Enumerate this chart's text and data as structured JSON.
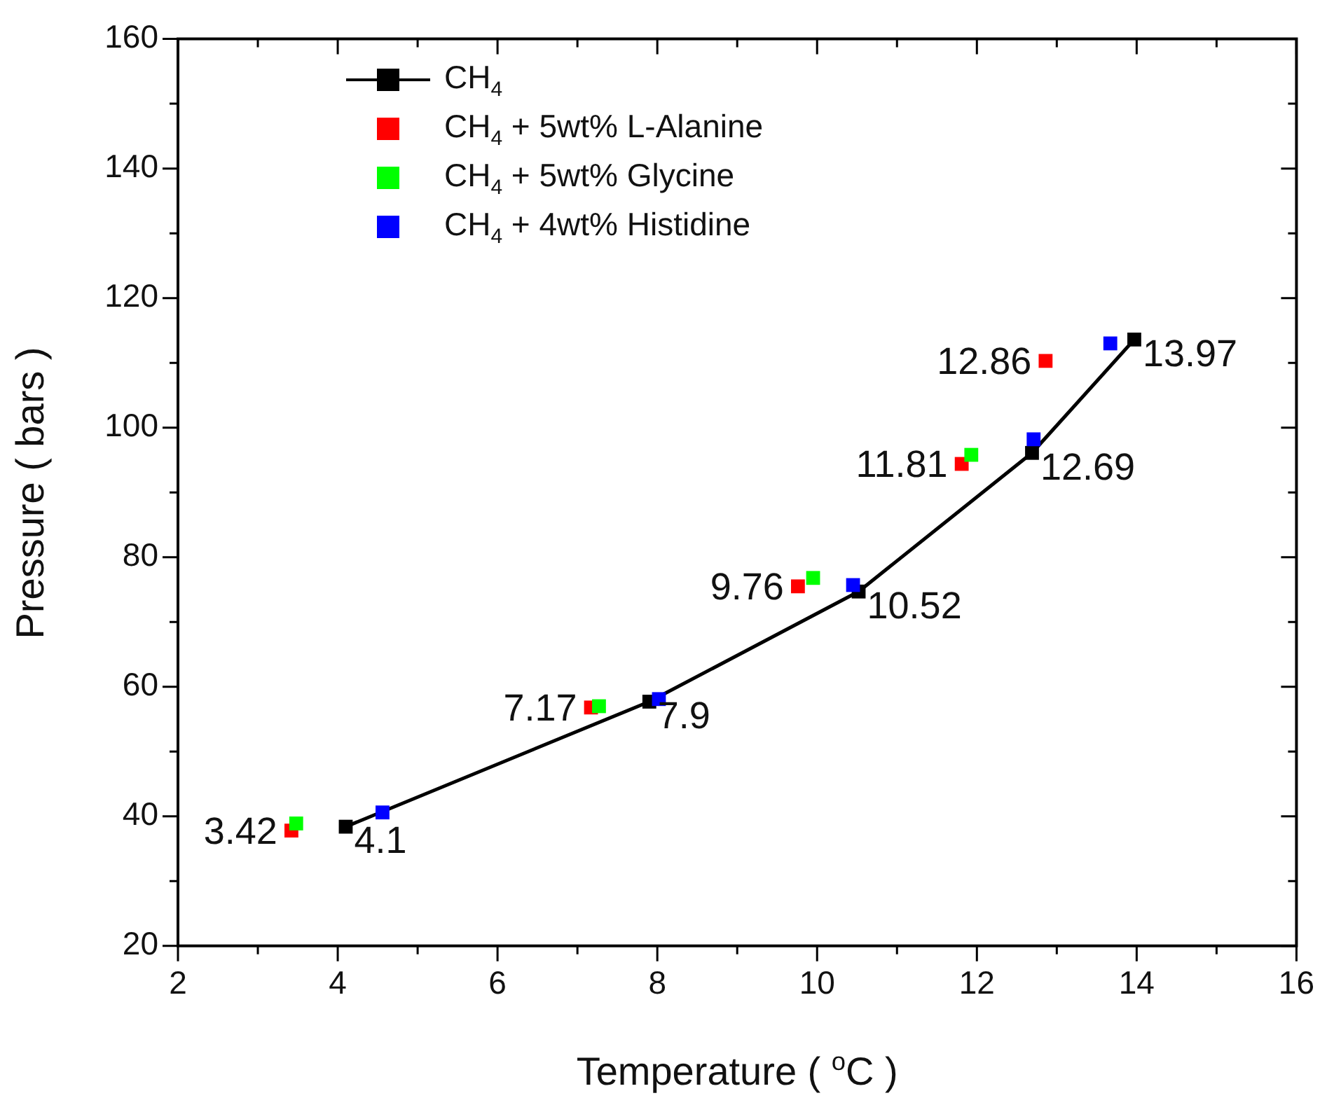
{
  "chart_data": {
    "type": "scatter",
    "xlabel": "Temperature ( $^{o}$C )",
    "ylabel": "Pressure ( bars )",
    "xlim": [
      2,
      16
    ],
    "xticks": [
      2,
      {
        "value": 3,
        "label": null
      },
      4,
      {
        "value": 5,
        "label": null
      },
      6,
      {
        "value": 7,
        "label": null
      },
      8,
      {
        "value": 9,
        "label": null
      },
      10,
      {
        "value": 11,
        "label": null
      },
      12,
      {
        "value": 13,
        "label": null
      },
      14,
      {
        "value": 15,
        "label": null
      },
      16
    ],
    "ylim": [
      20,
      160
    ],
    "yticks": [
      20,
      {
        "value": 30,
        "label": null
      },
      40,
      {
        "value": 50,
        "label": null
      },
      60,
      {
        "value": 70,
        "label": null
      },
      80,
      {
        "value": 90,
        "label": null
      },
      100,
      {
        "value": 110,
        "label": null
      },
      120,
      {
        "value": 130,
        "label": null
      },
      140,
      {
        "value": 150,
        "label": null
      },
      160
    ],
    "grid": false,
    "legend": "top left",
    "marker": "square",
    "series": [
      {
        "name": "CH$_{4}$",
        "type": "line",
        "color": "#000000",
        "x": [
          4.1,
          7.9,
          10.52,
          12.69,
          13.97
        ],
        "values": [
          38.4,
          57.7,
          74.7,
          96.1,
          113.6
        ]
      },
      {
        "name": "CH$_{4}$ + 5wt% L-Alanine",
        "type": "scatter",
        "color": "#ff0000",
        "x": [
          3.42,
          7.17,
          9.76,
          11.81,
          12.86
        ],
        "values": [
          37.8,
          56.8,
          75.5,
          94.4,
          110.3
        ]
      },
      {
        "name": "CH$_{4}$ + 5wt% Glycine",
        "type": "scatter",
        "color": "#00ff00",
        "x": [
          3.48,
          7.27,
          9.95,
          11.93
        ],
        "values": [
          38.9,
          57.0,
          76.8,
          95.8
        ]
      },
      {
        "name": "CH$_{4}$ + 4wt% Histidine",
        "type": "scatter",
        "color": "#0000ff",
        "x": [
          4.56,
          8.02,
          10.45,
          12.71,
          13.67
        ],
        "values": [
          40.6,
          58.1,
          75.7,
          98.2,
          113.0
        ]
      }
    ],
    "annotations": [
      {
        "text": "3.42",
        "x": 3.42,
        "y": 37.8
      },
      {
        "text": "4.1",
        "x": 4.1,
        "y": 38.4
      },
      {
        "text": "7.17",
        "x": 7.17,
        "y": 56.8
      },
      {
        "text": "7.9",
        "x": 7.9,
        "y": 57.7
      },
      {
        "text": "9.76",
        "x": 9.76,
        "y": 75.5
      },
      {
        "text": "10.52",
        "x": 10.52,
        "y": 74.7
      },
      {
        "text": "11.81",
        "x": 11.81,
        "y": 94.4
      },
      {
        "text": "12.69",
        "x": 12.69,
        "y": 96.1
      },
      {
        "text": "12.86",
        "x": 12.86,
        "y": 110.3
      },
      {
        "text": "13.97",
        "x": 13.97,
        "y": 113.6
      }
    ]
  }
}
